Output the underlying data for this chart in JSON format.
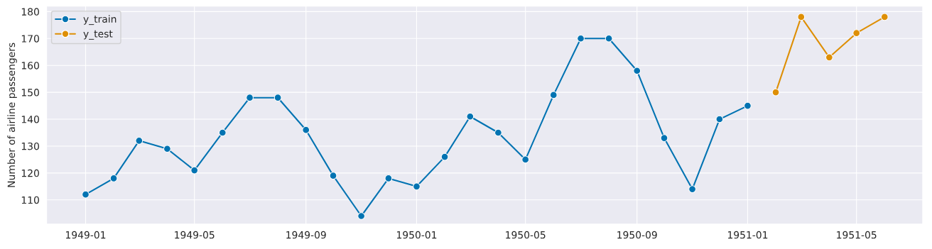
{
  "chart_data": {
    "type": "line",
    "ylabel": "Number of airline passengers",
    "series": [
      {
        "name": "y_train",
        "color": "#0173b2",
        "x": [
          "1949-01",
          "1949-02",
          "1949-03",
          "1949-04",
          "1949-05",
          "1949-06",
          "1949-07",
          "1949-08",
          "1949-09",
          "1949-10",
          "1949-11",
          "1949-12",
          "1950-01",
          "1950-02",
          "1950-03",
          "1950-04",
          "1950-05",
          "1950-06",
          "1950-07",
          "1950-08",
          "1950-09",
          "1950-10",
          "1950-11",
          "1950-12",
          "1951-01"
        ],
        "values": [
          112,
          118,
          132,
          129,
          121,
          135,
          148,
          148,
          136,
          119,
          104,
          118,
          115,
          126,
          141,
          135,
          125,
          149,
          170,
          170,
          158,
          133,
          114,
          140,
          145
        ]
      },
      {
        "name": "y_test",
        "color": "#de8f05",
        "x": [
          "1951-02",
          "1951-03",
          "1951-04",
          "1951-05",
          "1951-06"
        ],
        "values": [
          150,
          178,
          163,
          172,
          178
        ]
      }
    ],
    "xlim": [
      "1948-11-19",
      "1951-07-13"
    ],
    "xticks": [
      "1949-01",
      "1949-05",
      "1949-09",
      "1950-01",
      "1950-05",
      "1950-09",
      "1951-01",
      "1951-05"
    ],
    "ylim": [
      101,
      182
    ],
    "yticks": [
      110,
      120,
      130,
      140,
      150,
      160,
      170,
      180
    ],
    "grid": true,
    "legend": "top left",
    "marker": "circle",
    "line_style": "solid"
  }
}
